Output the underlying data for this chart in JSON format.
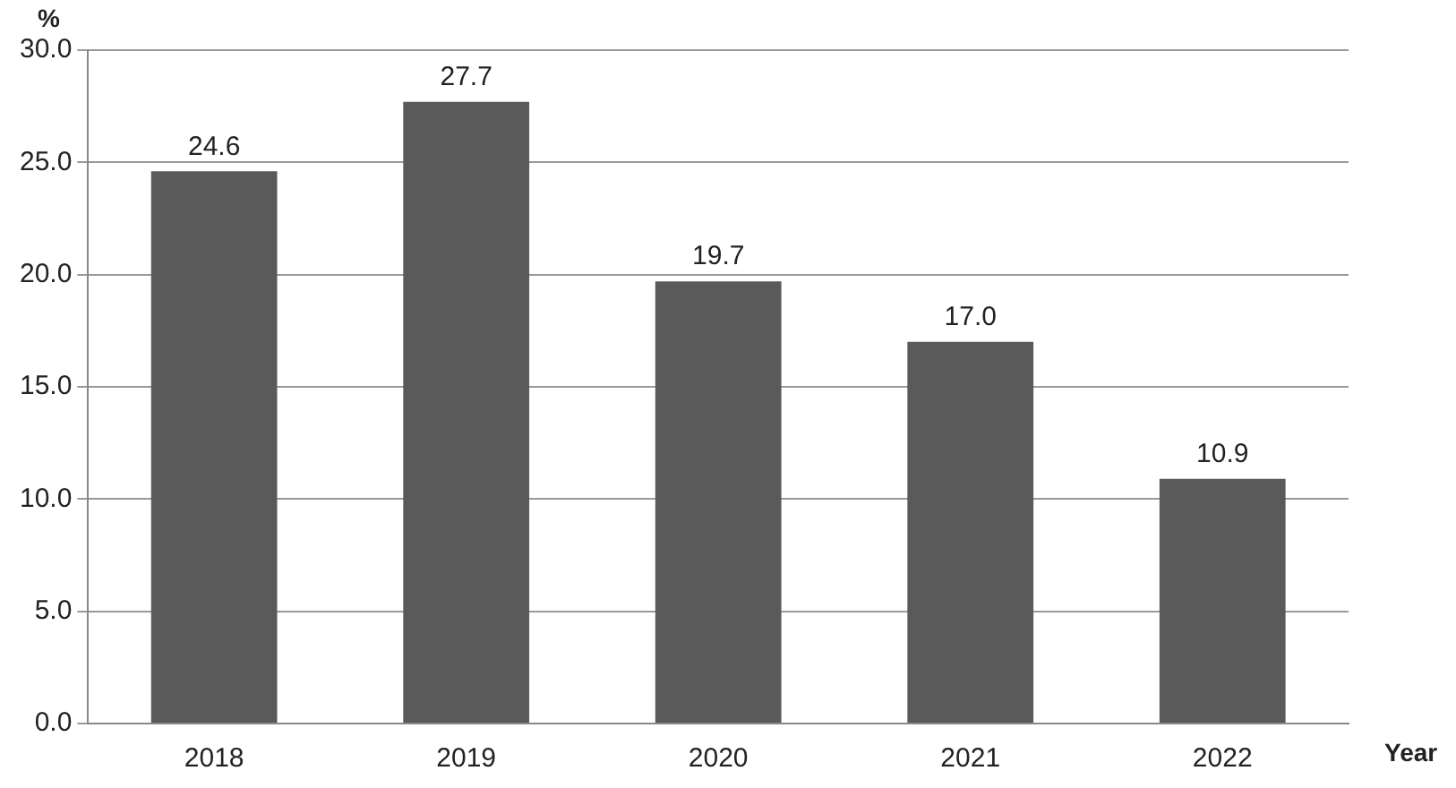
{
  "chart_data": {
    "type": "bar",
    "xlabel": "Year",
    "ylabel": "%",
    "categories": [
      "2018",
      "2019",
      "2020",
      "2021",
      "2022"
    ],
    "values": [
      24.6,
      27.7,
      19.7,
      17.0,
      10.9
    ],
    "color": "#5a5a5a",
    "ylim": [
      0,
      30
    ],
    "yticks": [
      {
        "value": 0,
        "label": "0.0"
      },
      {
        "value": 5,
        "label": "5.0"
      },
      {
        "value": 10,
        "label": "10.0"
      },
      {
        "value": 15,
        "label": "15.0"
      },
      {
        "value": 20,
        "label": "20.0"
      },
      {
        "value": 25,
        "label": "25.0"
      },
      {
        "value": 30,
        "label": "30.0"
      }
    ],
    "value_labels": [
      "24.6",
      "27.7",
      "19.7",
      "17.0",
      "10.9"
    ],
    "grid": "y",
    "legend": false
  }
}
